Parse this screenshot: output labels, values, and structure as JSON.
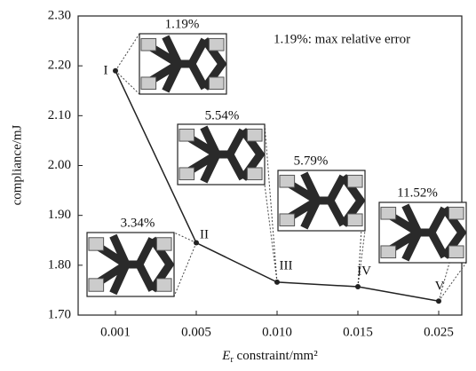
{
  "chart_data": {
    "type": "line",
    "ylabel": "compliance/mJ",
    "xlabel": {
      "symbol": "E",
      "subscript": "r",
      "text": " constraint/mm²"
    },
    "categories": [
      "0.001",
      "0.005",
      "0.010",
      "0.015",
      "0.025"
    ],
    "series": [
      {
        "color": "#222222",
        "values": [
          2.19,
          1.845,
          1.766,
          1.757,
          1.728
        ],
        "point_labels": [
          "I",
          "II",
          "III",
          "IV",
          "V"
        ],
        "errors": [
          "1.19%",
          "3.34%",
          "5.54%",
          "5.79%",
          "11.52%"
        ]
      }
    ],
    "note": "1.19%: max relative error",
    "ylim": [
      1.7,
      2.3
    ],
    "yticks": [
      {
        "value": 1.7,
        "label": "1.70"
      },
      {
        "value": 1.8,
        "label": "1.80"
      },
      {
        "value": 1.9,
        "label": "1.90"
      },
      {
        "value": 2.0,
        "label": "2.00"
      },
      {
        "value": 2.1,
        "label": "2.10"
      },
      {
        "value": 2.2,
        "label": "2.20"
      },
      {
        "value": 2.3,
        "label": "2.30"
      }
    ]
  }
}
